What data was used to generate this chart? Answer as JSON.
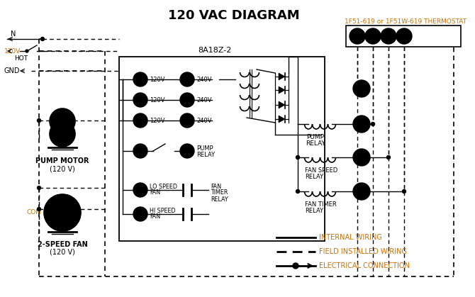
{
  "title": "120 VAC DIAGRAM",
  "background_color": "#ffffff",
  "orange_color": "#c87000",
  "black_color": "#000000",
  "thermostat_label": "1F51-619 or 1F51W-619 THERMOSTAT",
  "control_box_label": "8A18Z-2",
  "legend_items": [
    {
      "label": "INTERNAL WIRING"
    },
    {
      "label": "FIELD INSTALLED WIRING"
    },
    {
      "label": "ELECTRICAL CONNECTION"
    }
  ]
}
